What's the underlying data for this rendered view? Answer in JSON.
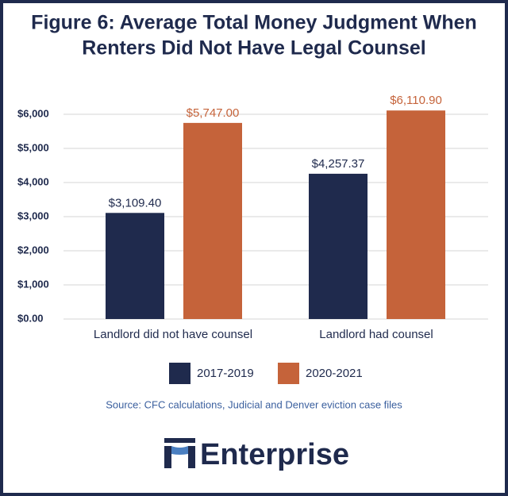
{
  "chart_data": {
    "type": "bar",
    "title": [
      "Figure 6: Average Total Money Judgment When",
      "Renters Did Not Have Legal Counsel"
    ],
    "categories": [
      "Landlord did not have counsel",
      "Landlord had counsel"
    ],
    "series": [
      {
        "name": "2017-2019",
        "color": "#1f2a4d",
        "values": [
          3109.4,
          4257.37
        ],
        "value_labels": [
          "$3,109.40",
          "$4,257.37"
        ]
      },
      {
        "name": "2020-2021",
        "color": "#c5633a",
        "values": [
          5747.0,
          6110.9
        ],
        "value_labels": [
          "$5,747.00",
          "$6,110.90"
        ]
      }
    ],
    "ylim": [
      0,
      6000
    ],
    "yticks": [
      {
        "value": 0,
        "label": "$0.00"
      },
      {
        "value": 1000,
        "label": "$1,000"
      },
      {
        "value": 2000,
        "label": "$2,000"
      },
      {
        "value": 3000,
        "label": "$3,000"
      },
      {
        "value": 4000,
        "label": "$4,000"
      },
      {
        "value": 5000,
        "label": "$5,000"
      },
      {
        "value": 6000,
        "label": "$6,000"
      }
    ],
    "grid": true,
    "source": "Source: CFC calculations, Judicial and Denver eviction case files"
  },
  "logo": "Enterprise"
}
